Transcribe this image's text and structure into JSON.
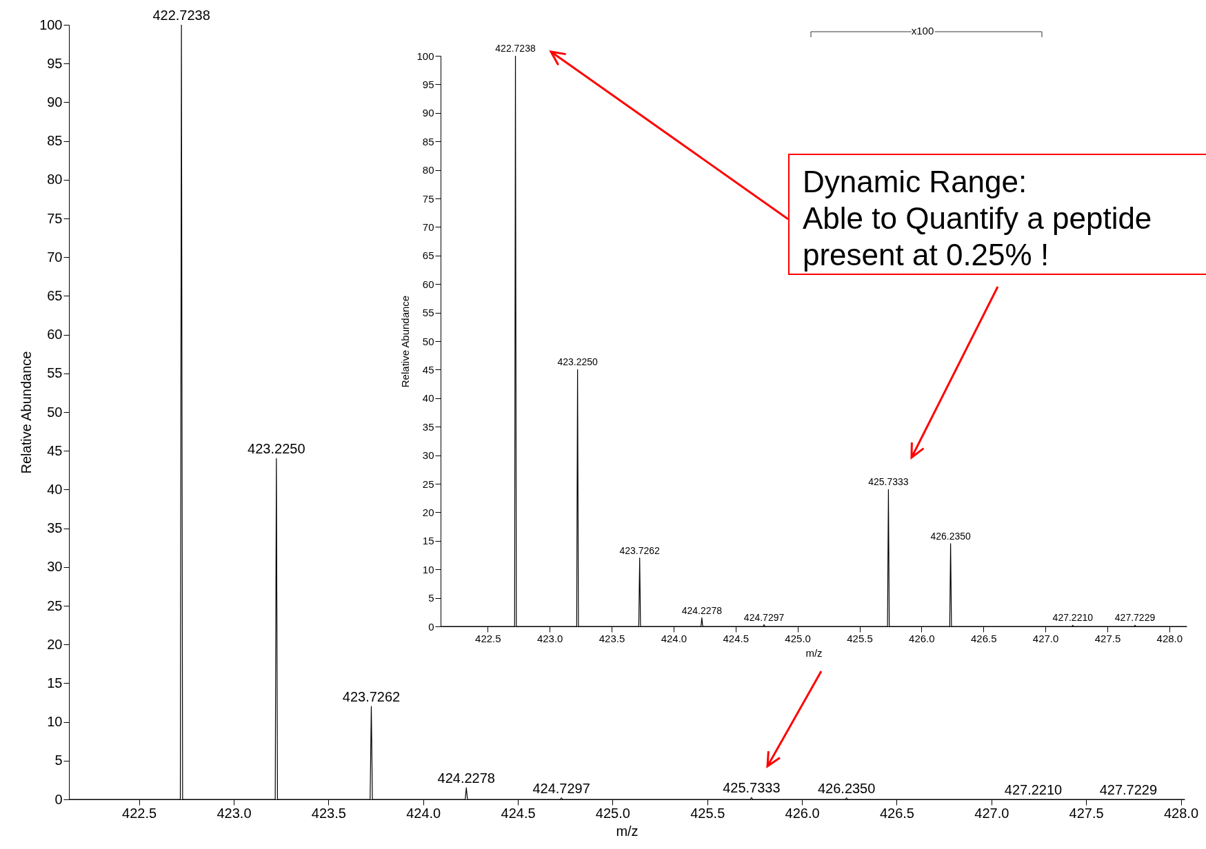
{
  "chart_data": [
    {
      "type": "line",
      "xlabel": "m/z",
      "ylabel": "Relative Abundance",
      "xlim": [
        422.13,
        428.02
      ],
      "ylim": [
        0,
        100
      ],
      "xticks": [
        {
          "value": 422.5,
          "label": "422.5"
        },
        {
          "value": 423,
          "label": "423.0"
        },
        {
          "value": 423.5,
          "label": "423.5"
        },
        {
          "value": 424,
          "label": "424.0"
        },
        {
          "value": 424.5,
          "label": "424.5"
        },
        {
          "value": 425,
          "label": "425.0"
        },
        {
          "value": 425.5,
          "label": "425.5"
        },
        {
          "value": 426,
          "label": "426.0"
        },
        {
          "value": 426.5,
          "label": "426.5"
        },
        {
          "value": 427,
          "label": "427.0"
        },
        {
          "value": 427.5,
          "label": "427.5"
        },
        {
          "value": 428,
          "label": "428.0"
        }
      ],
      "yticks": [
        0,
        5,
        10,
        15,
        20,
        25,
        30,
        35,
        40,
        45,
        50,
        55,
        60,
        65,
        70,
        75,
        80,
        85,
        90,
        95,
        100
      ],
      "grid": false,
      "marker": "none",
      "line_style": "solid",
      "series": [
        {
          "color": "#000000",
          "x": [
            422.13,
            422.718,
            422.7238,
            422.73,
            423.219,
            423.225,
            423.231,
            423.72,
            423.7262,
            423.732,
            424.222,
            424.2278,
            424.234,
            424.724,
            424.7297,
            424.736,
            425.727,
            425.7333,
            425.739,
            426.229,
            426.235,
            426.241,
            428.02
          ],
          "values": [
            0,
            0,
            100,
            0,
            0,
            44,
            0,
            0,
            12,
            0,
            0,
            1.5,
            0,
            0,
            0.2,
            0,
            0,
            0.25,
            0,
            0,
            0.2,
            0,
            0
          ]
        }
      ],
      "annotations": [
        {
          "text": "422.7238",
          "x": 422.7238,
          "y": 100
        },
        {
          "text": "423.2250",
          "x": 423.225,
          "y": 44
        },
        {
          "text": "423.7262",
          "x": 423.7262,
          "y": 12
        },
        {
          "text": "424.2278",
          "x": 424.2278,
          "y": 1.5
        },
        {
          "text": "424.7297",
          "x": 424.7297,
          "y": 0.2
        },
        {
          "text": "425.7333",
          "x": 425.7333,
          "y": 0.25
        },
        {
          "text": "426.2350",
          "x": 426.235,
          "y": 0.2
        },
        {
          "text": "427.2210",
          "x": 427.221,
          "y": 0
        },
        {
          "text": "427.7229",
          "x": 427.7229,
          "y": 0
        },
        "Dynamic Range:\nAble to Quantify a peptide present at 0.25% !"
      ]
    },
    {
      "type": "line",
      "xlabel": "m/z",
      "ylabel": "Relative Abundance",
      "xlim": [
        422.12,
        428.14
      ],
      "ylim": [
        0,
        100
      ],
      "xticks": [
        {
          "value": 422.5,
          "label": "422.5"
        },
        {
          "value": 423,
          "label": "423.0"
        },
        {
          "value": 423.5,
          "label": "423.5"
        },
        {
          "value": 424,
          "label": "424.0"
        },
        {
          "value": 424.5,
          "label": "424.5"
        },
        {
          "value": 425,
          "label": "425.0"
        },
        {
          "value": 425.5,
          "label": "425.5"
        },
        {
          "value": 426,
          "label": "426.0"
        },
        {
          "value": 426.5,
          "label": "426.5"
        },
        {
          "value": 427,
          "label": "427.0"
        },
        {
          "value": 427.5,
          "label": "427.5"
        },
        {
          "value": 428,
          "label": "428.0"
        }
      ],
      "yticks": [
        0,
        5,
        10,
        15,
        20,
        25,
        30,
        35,
        40,
        45,
        50,
        55,
        60,
        65,
        70,
        75,
        80,
        85,
        90,
        95,
        100
      ],
      "grid": false,
      "marker": "none",
      "line_style": "solid",
      "series": [
        {
          "color": "#000000",
          "x": [
            422.12,
            422.717,
            422.7238,
            422.731,
            423.218,
            423.225,
            423.232,
            423.719,
            423.7262,
            423.733,
            424.221,
            424.2278,
            424.235,
            424.723,
            424.7297,
            424.737,
            425.726,
            425.7333,
            425.74,
            426.228,
            426.235,
            426.242,
            427.214,
            427.221,
            427.228,
            427.716,
            427.7229,
            427.73,
            428.14
          ],
          "values": [
            0,
            0,
            100,
            0,
            0,
            45,
            0,
            0,
            12,
            0,
            0,
            1.5,
            0,
            0,
            0.3,
            0,
            0,
            24,
            0,
            0,
            14.5,
            0,
            0,
            0.2,
            0,
            0,
            0.2,
            0,
            0
          ]
        }
      ],
      "annotations": [
        {
          "text": "422.7238",
          "x": 422.7238,
          "y": 100
        },
        {
          "text": "423.2250",
          "x": 423.225,
          "y": 45
        },
        {
          "text": "423.7262",
          "x": 423.7262,
          "y": 12
        },
        {
          "text": "424.2278",
          "x": 424.2278,
          "y": 1.5
        },
        {
          "text": "424.7297",
          "x": 424.7297,
          "y": 0.3
        },
        {
          "text": "425.7333",
          "x": 425.7333,
          "y": 24
        },
        {
          "text": "426.2350",
          "x": 426.235,
          "y": 14.5
        },
        {
          "text": "427.2210",
          "x": 427.221,
          "y": 0.2
        },
        {
          "text": "427.7229",
          "x": 427.7229,
          "y": 0.2
        },
        "x100"
      ]
    }
  ]
}
